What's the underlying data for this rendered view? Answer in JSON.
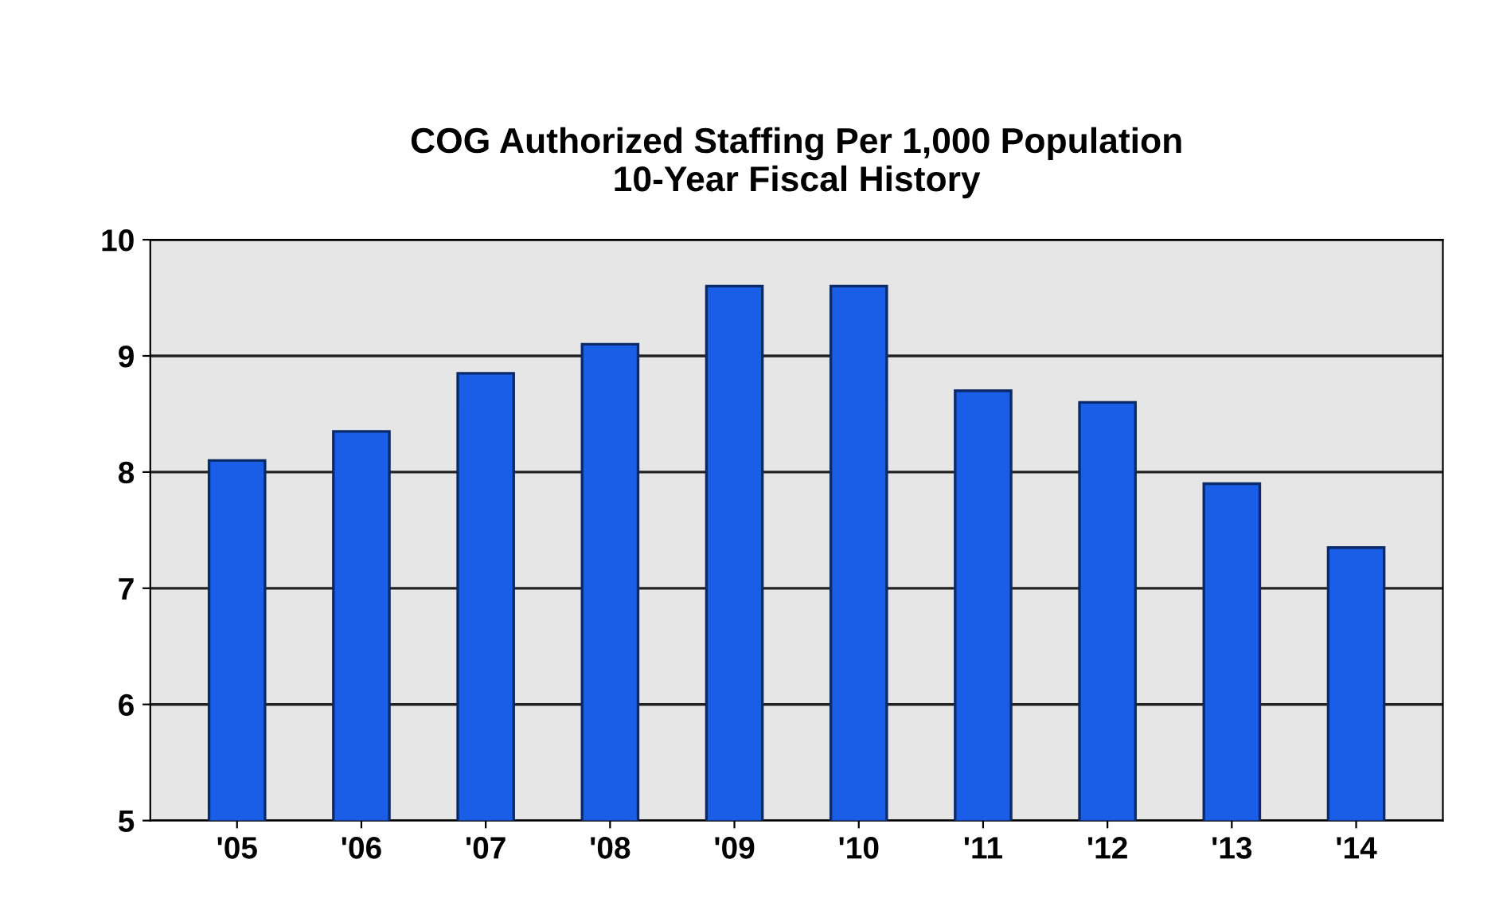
{
  "chart_data": {
    "type": "bar",
    "title": "COG Authorized Staffing Per 1,000 Population\n10-Year Fiscal History",
    "categories": [
      "'05",
      "'06",
      "'07",
      "'08",
      "'09",
      "'10",
      "'11",
      "'12",
      "'13",
      "'14"
    ],
    "values": [
      8.1,
      8.35,
      8.85,
      9.1,
      9.6,
      9.6,
      8.7,
      8.6,
      7.9,
      7.35
    ],
    "color": "#1a5ee8",
    "ylim": [
      5,
      10
    ],
    "yticks": [
      5,
      6,
      7,
      8,
      9,
      10
    ],
    "grid": "y"
  }
}
